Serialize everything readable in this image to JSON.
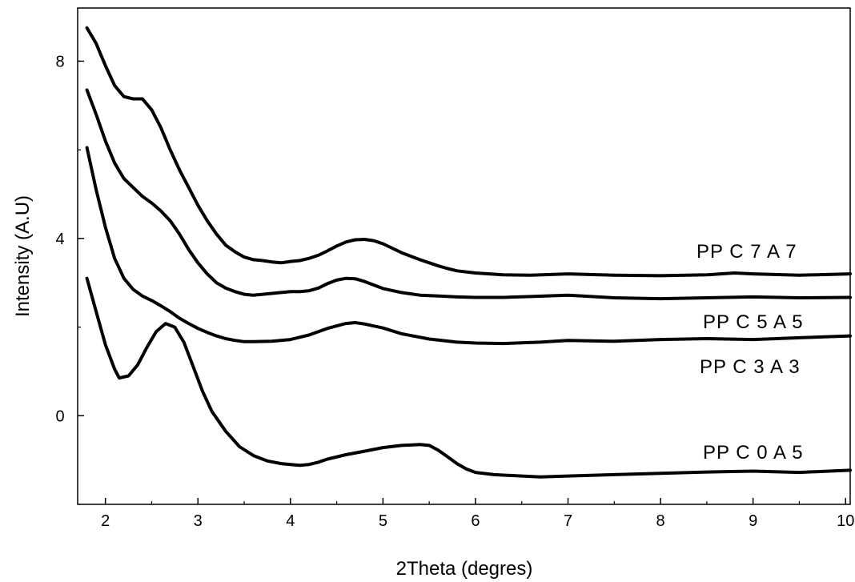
{
  "chart_data": {
    "type": "line",
    "title": "",
    "xlabel": "2Theta (degres)",
    "ylabel": "Intensity (A.U)",
    "xlim": [
      1.7,
      10.05
    ],
    "ylim": [
      -2.0,
      9.2
    ],
    "x_ticks": [
      2,
      3,
      4,
      5,
      6,
      7,
      8,
      9,
      10
    ],
    "y_ticks": [
      0,
      4,
      8
    ],
    "grid": false,
    "legend": "inline labels at right",
    "series": [
      {
        "name": "PP C 7 A 7",
        "color": "#000000",
        "points": [
          [
            1.8,
            8.75
          ],
          [
            1.9,
            8.4
          ],
          [
            2.0,
            7.9
          ],
          [
            2.1,
            7.45
          ],
          [
            2.2,
            7.2
          ],
          [
            2.3,
            7.15
          ],
          [
            2.4,
            7.15
          ],
          [
            2.5,
            6.9
          ],
          [
            2.6,
            6.5
          ],
          [
            2.7,
            6.0
          ],
          [
            2.8,
            5.55
          ],
          [
            2.9,
            5.15
          ],
          [
            3.0,
            4.75
          ],
          [
            3.1,
            4.4
          ],
          [
            3.2,
            4.1
          ],
          [
            3.3,
            3.85
          ],
          [
            3.4,
            3.7
          ],
          [
            3.5,
            3.58
          ],
          [
            3.6,
            3.52
          ],
          [
            3.7,
            3.5
          ],
          [
            3.8,
            3.47
          ],
          [
            3.9,
            3.45
          ],
          [
            4.0,
            3.48
          ],
          [
            4.1,
            3.5
          ],
          [
            4.2,
            3.55
          ],
          [
            4.3,
            3.62
          ],
          [
            4.4,
            3.72
          ],
          [
            4.5,
            3.83
          ],
          [
            4.6,
            3.92
          ],
          [
            4.7,
            3.97
          ],
          [
            4.8,
            3.98
          ],
          [
            4.9,
            3.95
          ],
          [
            5.0,
            3.88
          ],
          [
            5.1,
            3.78
          ],
          [
            5.2,
            3.68
          ],
          [
            5.3,
            3.6
          ],
          [
            5.4,
            3.52
          ],
          [
            5.5,
            3.45
          ],
          [
            5.6,
            3.38
          ],
          [
            5.7,
            3.32
          ],
          [
            5.8,
            3.27
          ],
          [
            6.0,
            3.22
          ],
          [
            6.3,
            3.18
          ],
          [
            6.6,
            3.17
          ],
          [
            7.0,
            3.2
          ],
          [
            7.5,
            3.17
          ],
          [
            8.0,
            3.16
          ],
          [
            8.5,
            3.18
          ],
          [
            8.8,
            3.22
          ],
          [
            9.0,
            3.2
          ],
          [
            9.5,
            3.17
          ],
          [
            10.05,
            3.2
          ]
        ]
      },
      {
        "name": "PP C 5 A 5",
        "color": "#000000",
        "points": [
          [
            1.8,
            7.35
          ],
          [
            1.9,
            6.8
          ],
          [
            2.0,
            6.2
          ],
          [
            2.1,
            5.7
          ],
          [
            2.2,
            5.35
          ],
          [
            2.3,
            5.15
          ],
          [
            2.4,
            4.95
          ],
          [
            2.5,
            4.8
          ],
          [
            2.6,
            4.62
          ],
          [
            2.7,
            4.4
          ],
          [
            2.8,
            4.1
          ],
          [
            2.9,
            3.75
          ],
          [
            3.0,
            3.45
          ],
          [
            3.1,
            3.2
          ],
          [
            3.2,
            3.0
          ],
          [
            3.3,
            2.88
          ],
          [
            3.4,
            2.8
          ],
          [
            3.5,
            2.74
          ],
          [
            3.6,
            2.72
          ],
          [
            3.7,
            2.74
          ],
          [
            3.8,
            2.76
          ],
          [
            3.9,
            2.78
          ],
          [
            4.0,
            2.8
          ],
          [
            4.1,
            2.8
          ],
          [
            4.2,
            2.82
          ],
          [
            4.3,
            2.88
          ],
          [
            4.4,
            2.98
          ],
          [
            4.5,
            3.06
          ],
          [
            4.6,
            3.1
          ],
          [
            4.7,
            3.09
          ],
          [
            4.8,
            3.03
          ],
          [
            4.9,
            2.95
          ],
          [
            5.0,
            2.87
          ],
          [
            5.2,
            2.78
          ],
          [
            5.4,
            2.72
          ],
          [
            5.6,
            2.7
          ],
          [
            5.8,
            2.68
          ],
          [
            6.0,
            2.67
          ],
          [
            6.3,
            2.67
          ],
          [
            6.6,
            2.69
          ],
          [
            7.0,
            2.72
          ],
          [
            7.5,
            2.66
          ],
          [
            8.0,
            2.64
          ],
          [
            8.5,
            2.66
          ],
          [
            9.0,
            2.68
          ],
          [
            9.5,
            2.66
          ],
          [
            10.05,
            2.67
          ]
        ]
      },
      {
        "name": "PP C 3 A 3",
        "color": "#000000",
        "points": [
          [
            1.8,
            6.05
          ],
          [
            1.9,
            5.1
          ],
          [
            2.0,
            4.25
          ],
          [
            2.1,
            3.55
          ],
          [
            2.2,
            3.1
          ],
          [
            2.3,
            2.85
          ],
          [
            2.4,
            2.7
          ],
          [
            2.5,
            2.6
          ],
          [
            2.6,
            2.48
          ],
          [
            2.7,
            2.35
          ],
          [
            2.8,
            2.2
          ],
          [
            2.9,
            2.08
          ],
          [
            3.0,
            1.97
          ],
          [
            3.1,
            1.88
          ],
          [
            3.2,
            1.8
          ],
          [
            3.3,
            1.74
          ],
          [
            3.4,
            1.7
          ],
          [
            3.5,
            1.67
          ],
          [
            3.6,
            1.67
          ],
          [
            3.8,
            1.68
          ],
          [
            4.0,
            1.72
          ],
          [
            4.2,
            1.82
          ],
          [
            4.4,
            1.97
          ],
          [
            4.6,
            2.08
          ],
          [
            4.7,
            2.1
          ],
          [
            4.8,
            2.07
          ],
          [
            5.0,
            1.98
          ],
          [
            5.2,
            1.85
          ],
          [
            5.5,
            1.73
          ],
          [
            5.8,
            1.66
          ],
          [
            6.0,
            1.64
          ],
          [
            6.3,
            1.63
          ],
          [
            6.7,
            1.66
          ],
          [
            7.0,
            1.7
          ],
          [
            7.5,
            1.68
          ],
          [
            8.0,
            1.72
          ],
          [
            8.5,
            1.74
          ],
          [
            9.0,
            1.72
          ],
          [
            9.5,
            1.76
          ],
          [
            10.05,
            1.8
          ]
        ]
      },
      {
        "name": "PP C 0 A 5",
        "color": "#000000",
        "points": [
          [
            1.8,
            3.1
          ],
          [
            1.9,
            2.35
          ],
          [
            2.0,
            1.6
          ],
          [
            2.1,
            1.05
          ],
          [
            2.15,
            0.85
          ],
          [
            2.25,
            0.9
          ],
          [
            2.35,
            1.15
          ],
          [
            2.45,
            1.55
          ],
          [
            2.55,
            1.9
          ],
          [
            2.65,
            2.08
          ],
          [
            2.75,
            2.0
          ],
          [
            2.85,
            1.65
          ],
          [
            2.95,
            1.1
          ],
          [
            3.05,
            0.55
          ],
          [
            3.15,
            0.1
          ],
          [
            3.3,
            -0.35
          ],
          [
            3.45,
            -0.7
          ],
          [
            3.6,
            -0.9
          ],
          [
            3.75,
            -1.02
          ],
          [
            3.9,
            -1.08
          ],
          [
            4.0,
            -1.1
          ],
          [
            4.1,
            -1.12
          ],
          [
            4.2,
            -1.1
          ],
          [
            4.3,
            -1.05
          ],
          [
            4.4,
            -0.98
          ],
          [
            4.6,
            -0.88
          ],
          [
            4.8,
            -0.8
          ],
          [
            5.0,
            -0.72
          ],
          [
            5.2,
            -0.67
          ],
          [
            5.4,
            -0.65
          ],
          [
            5.5,
            -0.67
          ],
          [
            5.6,
            -0.78
          ],
          [
            5.7,
            -0.93
          ],
          [
            5.8,
            -1.08
          ],
          [
            5.9,
            -1.2
          ],
          [
            6.0,
            -1.28
          ],
          [
            6.2,
            -1.33
          ],
          [
            6.5,
            -1.36
          ],
          [
            6.7,
            -1.38
          ],
          [
            7.0,
            -1.36
          ],
          [
            7.5,
            -1.33
          ],
          [
            8.0,
            -1.3
          ],
          [
            8.5,
            -1.27
          ],
          [
            9.0,
            -1.25
          ],
          [
            9.5,
            -1.28
          ],
          [
            10.05,
            -1.23
          ]
        ]
      }
    ]
  }
}
